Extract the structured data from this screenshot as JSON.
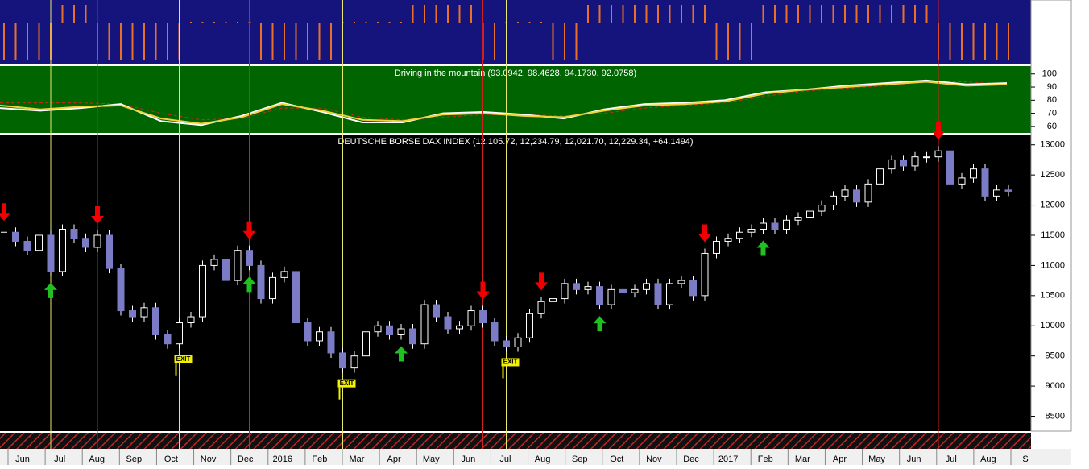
{
  "chart_data": [
    {
      "type": "signal",
      "color": "#e8702a",
      "values": [
        -1,
        -1,
        -1,
        -1,
        -1,
        1,
        1,
        1,
        -1,
        -1,
        -1,
        -1,
        -1,
        -1,
        -1,
        -1,
        0,
        0,
        0,
        0,
        0,
        0,
        -1,
        -1,
        -1,
        -1,
        -1,
        -1,
        -1,
        0,
        0,
        0,
        0,
        0,
        0,
        1,
        1,
        1,
        1,
        1,
        1,
        -1,
        -1,
        0,
        0,
        0,
        0,
        -1,
        -1,
        -1,
        1,
        1,
        1,
        1,
        1,
        1,
        1,
        1,
        1,
        1,
        1,
        -1,
        -1,
        -1,
        -1,
        1,
        1,
        1,
        1,
        1,
        1,
        1,
        1,
        1,
        1,
        1,
        1,
        1,
        1,
        1,
        -1,
        -1,
        -1,
        -1,
        -1,
        -1,
        -1
      ]
    },
    {
      "type": "line",
      "title": "Driving in the mountain (93.0942, 98.4628, 94.1730, 92.0758)",
      "ylim": [
        55,
        106
      ],
      "yticks": [
        60,
        70,
        80,
        90,
        100
      ],
      "series": [
        {
          "color": "#cc2a1a",
          "dash": true,
          "values": [
            78,
            78,
            78,
            77,
            70,
            65,
            66,
            74,
            74,
            67,
            65,
            67,
            69,
            69,
            68,
            70,
            74,
            76,
            78,
            83,
            87,
            89,
            91,
            94,
            94,
            92
          ]
        },
        {
          "color": "#ffffff",
          "values": [
            74,
            72,
            74,
            77,
            64,
            61,
            68,
            78,
            71,
            63,
            63,
            70,
            71,
            69,
            66,
            73,
            77,
            78,
            80,
            86,
            88,
            91,
            93,
            95,
            92,
            93
          ]
        },
        {
          "color": "#f0d23c",
          "values": [
            76,
            73,
            75,
            76,
            66,
            62,
            67,
            77,
            72,
            65,
            64,
            69,
            70,
            68,
            67,
            72,
            76,
            77,
            79,
            85,
            88,
            90,
            92,
            94,
            91,
            92
          ]
        }
      ]
    },
    {
      "type": "candlestick",
      "title": "DEUTSCHE BORSE DAX INDEX (12,105.72, 12,234.79, 12,021.70, 12,229.34, +64.1494)",
      "ylim": [
        8320,
        13170
      ],
      "yticks": [
        8500,
        9000,
        9500,
        10000,
        10500,
        11000,
        11500,
        12000,
        12500,
        13000
      ],
      "values": [
        11550,
        11400,
        11250,
        11500,
        10900,
        11600,
        11450,
        11300,
        11500,
        10950,
        10250,
        10150,
        10300,
        9850,
        9700,
        10050,
        10150,
        11000,
        11100,
        10750,
        11250,
        11000,
        10450,
        10800,
        10900,
        10050,
        9750,
        9900,
        9550,
        9300,
        9500,
        9900,
        10000,
        9850,
        9950,
        9700,
        10350,
        10150,
        9950,
        10000,
        10250,
        10050,
        9750,
        9650,
        9800,
        10200,
        10400,
        10450,
        10700,
        10600,
        10650,
        10350,
        10600,
        10550,
        10600,
        10700,
        10350,
        10700,
        10750,
        10500,
        11200,
        11400,
        11450,
        11550,
        11600,
        11700,
        11600,
        11750,
        11800,
        11900,
        12000,
        12150,
        12250,
        12050,
        12350,
        12600,
        12750,
        12650,
        12800,
        12800,
        12900,
        12350,
        12450,
        12600,
        12150,
        12250,
        12229.34
      ],
      "sell": [
        0,
        8,
        21,
        41,
        46,
        60,
        80
      ],
      "buy": [
        4,
        21,
        34,
        51,
        65
      ],
      "exit": [
        15,
        29,
        43
      ],
      "exit_label": "EXIT",
      "red_lines": [
        8,
        21,
        41,
        80
      ],
      "yellow_lines": [
        4,
        15,
        29,
        43
      ],
      "x_labels": [
        "Jun",
        "Jul",
        "Aug",
        "Sep",
        "Oct",
        "Nov",
        "Dec",
        "2016",
        "Feb",
        "Mar",
        "Apr",
        "May",
        "Jun",
        "Jul",
        "Aug",
        "Sep",
        "Oct",
        "Nov",
        "Dec",
        "2017",
        "Feb",
        "Mar",
        "Apr",
        "May",
        "Jun",
        "Jul",
        "Aug",
        "S"
      ]
    }
  ]
}
